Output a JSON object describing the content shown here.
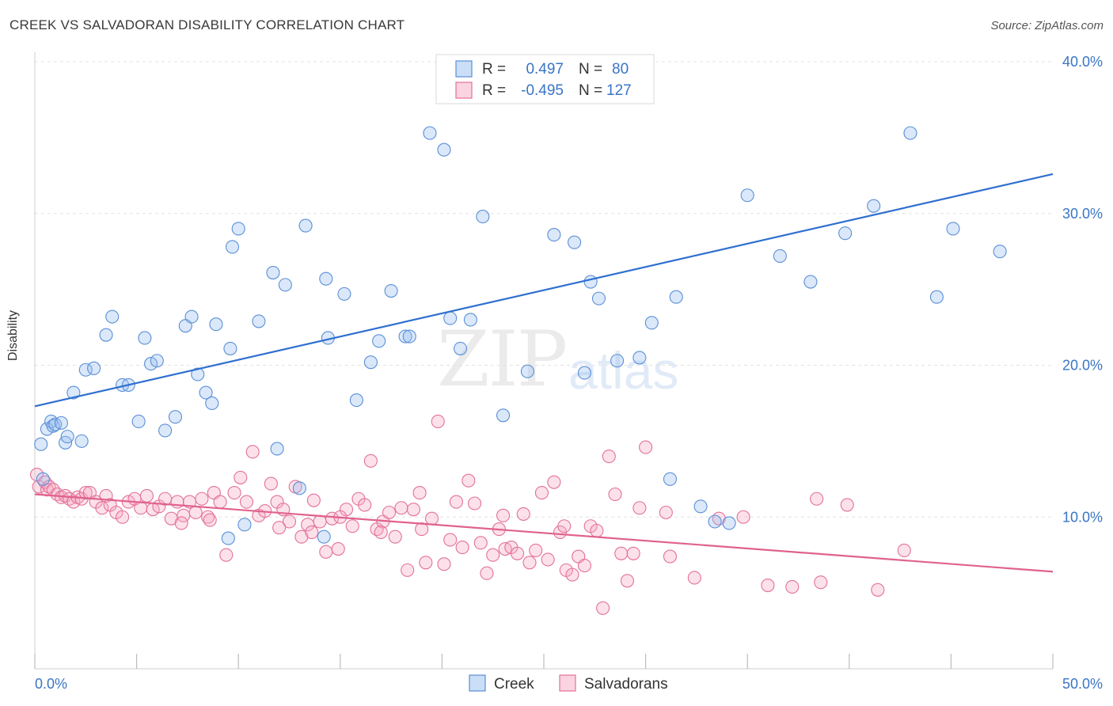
{
  "title": "CREEK VS SALVADORAN DISABILITY CORRELATION CHART",
  "source": "Source: ZipAtlas.com",
  "watermark": {
    "zip": "ZIP",
    "atlas": "atlas"
  },
  "colors": {
    "creek": "#5b8fd6",
    "creek_fill": "rgba(150,190,240,0.35)",
    "salvadoran": "#e2719a",
    "salvadoran_fill": "rgba(245,170,195,0.35)",
    "creek_line": "#2f6fd0",
    "salvadoran_line": "#e0628e",
    "tick": "#3a75c4"
  },
  "legend_top": [
    {
      "r_label": "R =",
      "r_value": "0.497",
      "n_label": "N =",
      "n_value": "80"
    },
    {
      "r_label": "R =",
      "r_value": "-0.495",
      "n_label": "N =",
      "n_value": "127"
    }
  ],
  "chart_data": {
    "type": "scatter",
    "title": "CREEK VS SALVADORAN DISABILITY CORRELATION CHART",
    "xlabel": "",
    "ylabel": "Disability",
    "xlim": [
      0,
      50
    ],
    "ylim": [
      0,
      40
    ],
    "x_tick_labels": [
      "0.0%",
      "50.0%"
    ],
    "y_ticks": [
      10,
      20,
      30,
      40
    ],
    "y_tick_labels": [
      "10.0%",
      "20.0%",
      "30.0%",
      "40.0%"
    ],
    "grid": true,
    "legend_position": "bottom-center",
    "series": [
      {
        "name": "Creek",
        "trend": {
          "x": [
            0,
            50
          ],
          "y": [
            17.3,
            32.6
          ]
        },
        "points": [
          [
            0.4,
            12.5
          ],
          [
            0.3,
            14.8
          ],
          [
            0.6,
            15.8
          ],
          [
            0.8,
            16.3
          ],
          [
            0.9,
            16.0
          ],
          [
            1.0,
            16.1
          ],
          [
            1.3,
            16.2
          ],
          [
            1.5,
            14.9
          ],
          [
            1.6,
            15.3
          ],
          [
            1.9,
            18.2
          ],
          [
            2.3,
            15.0
          ],
          [
            2.5,
            19.7
          ],
          [
            2.9,
            19.8
          ],
          [
            3.8,
            23.2
          ],
          [
            3.5,
            22.0
          ],
          [
            4.3,
            18.7
          ],
          [
            4.6,
            18.7
          ],
          [
            5.1,
            16.3
          ],
          [
            5.4,
            21.8
          ],
          [
            5.7,
            20.1
          ],
          [
            6.0,
            20.3
          ],
          [
            6.4,
            15.7
          ],
          [
            6.9,
            16.6
          ],
          [
            7.4,
            22.6
          ],
          [
            7.7,
            23.2
          ],
          [
            8.0,
            19.4
          ],
          [
            8.4,
            18.2
          ],
          [
            8.7,
            17.5
          ],
          [
            8.9,
            22.7
          ],
          [
            9.6,
            21.1
          ],
          [
            9.7,
            27.8
          ],
          [
            10.0,
            29.0
          ],
          [
            11.0,
            22.9
          ],
          [
            11.7,
            26.1
          ],
          [
            12.3,
            25.3
          ],
          [
            13.3,
            29.2
          ],
          [
            14.3,
            25.7
          ],
          [
            14.4,
            21.8
          ],
          [
            15.2,
            24.7
          ],
          [
            15.8,
            17.7
          ],
          [
            16.5,
            20.2
          ],
          [
            16.9,
            21.6
          ],
          [
            17.5,
            24.9
          ],
          [
            18.2,
            21.9
          ],
          [
            18.4,
            21.9
          ],
          [
            19.4,
            35.3
          ],
          [
            20.1,
            34.2
          ],
          [
            20.4,
            23.1
          ],
          [
            20.9,
            21.1
          ],
          [
            21.4,
            23.0
          ],
          [
            22.0,
            29.8
          ],
          [
            23.0,
            16.7
          ],
          [
            24.2,
            19.6
          ],
          [
            25.5,
            28.6
          ],
          [
            26.5,
            28.1
          ],
          [
            27.0,
            19.5
          ],
          [
            27.3,
            25.5
          ],
          [
            27.7,
            24.4
          ],
          [
            28.6,
            20.3
          ],
          [
            29.7,
            20.5
          ],
          [
            30.3,
            22.8
          ],
          [
            31.2,
            12.5
          ],
          [
            31.5,
            24.5
          ],
          [
            32.7,
            10.7
          ],
          [
            33.4,
            9.7
          ],
          [
            34.1,
            9.6
          ],
          [
            35.0,
            31.2
          ],
          [
            36.6,
            27.2
          ],
          [
            38.1,
            25.5
          ],
          [
            39.8,
            28.7
          ],
          [
            41.2,
            30.5
          ],
          [
            43.0,
            35.3
          ],
          [
            44.3,
            24.5
          ],
          [
            45.1,
            29.0
          ],
          [
            47.4,
            27.5
          ],
          [
            9.5,
            8.6
          ],
          [
            10.3,
            9.5
          ],
          [
            11.9,
            14.5
          ],
          [
            13.0,
            11.9
          ],
          [
            14.2,
            8.7
          ]
        ]
      },
      {
        "name": "Salvadorans",
        "trend": {
          "x": [
            0,
            50
          ],
          "y": [
            11.5,
            6.4
          ]
        },
        "points": [
          [
            0.1,
            12.8
          ],
          [
            0.2,
            12.0
          ],
          [
            0.5,
            12.3
          ],
          [
            0.6,
            11.8
          ],
          [
            0.7,
            12.0
          ],
          [
            0.9,
            11.8
          ],
          [
            1.1,
            11.5
          ],
          [
            1.3,
            11.3
          ],
          [
            1.5,
            11.4
          ],
          [
            1.7,
            11.2
          ],
          [
            1.9,
            11.0
          ],
          [
            2.1,
            11.3
          ],
          [
            2.3,
            11.2
          ],
          [
            2.5,
            11.6
          ],
          [
            2.7,
            11.6
          ],
          [
            3.0,
            11.0
          ],
          [
            3.3,
            10.6
          ],
          [
            3.5,
            11.4
          ],
          [
            3.7,
            10.8
          ],
          [
            4.0,
            10.3
          ],
          [
            4.3,
            10.0
          ],
          [
            4.6,
            11.0
          ],
          [
            4.9,
            11.2
          ],
          [
            5.2,
            10.6
          ],
          [
            5.5,
            11.4
          ],
          [
            5.8,
            10.5
          ],
          [
            6.1,
            10.7
          ],
          [
            6.4,
            11.2
          ],
          [
            6.7,
            9.9
          ],
          [
            7.0,
            11.0
          ],
          [
            7.3,
            10.1
          ],
          [
            7.6,
            11.0
          ],
          [
            7.9,
            10.3
          ],
          [
            8.2,
            11.2
          ],
          [
            8.5,
            10.0
          ],
          [
            8.8,
            11.6
          ],
          [
            9.1,
            11.0
          ],
          [
            9.4,
            7.5
          ],
          [
            9.8,
            11.6
          ],
          [
            10.1,
            12.6
          ],
          [
            10.4,
            11.0
          ],
          [
            10.7,
            14.3
          ],
          [
            11.0,
            10.1
          ],
          [
            11.3,
            10.4
          ],
          [
            11.6,
            12.2
          ],
          [
            11.9,
            11.0
          ],
          [
            12.2,
            10.5
          ],
          [
            12.5,
            9.7
          ],
          [
            12.8,
            12.0
          ],
          [
            13.1,
            8.7
          ],
          [
            13.4,
            9.5
          ],
          [
            13.7,
            11.1
          ],
          [
            14.0,
            9.7
          ],
          [
            14.3,
            7.7
          ],
          [
            14.6,
            9.9
          ],
          [
            14.9,
            7.9
          ],
          [
            15.3,
            10.5
          ],
          [
            15.6,
            9.4
          ],
          [
            15.9,
            11.2
          ],
          [
            16.2,
            10.8
          ],
          [
            16.5,
            13.7
          ],
          [
            16.8,
            9.2
          ],
          [
            17.1,
            9.7
          ],
          [
            17.4,
            10.3
          ],
          [
            17.7,
            8.7
          ],
          [
            18.0,
            10.6
          ],
          [
            18.3,
            6.5
          ],
          [
            18.6,
            10.5
          ],
          [
            18.9,
            11.6
          ],
          [
            19.2,
            7.0
          ],
          [
            19.5,
            9.9
          ],
          [
            19.8,
            16.3
          ],
          [
            20.1,
            6.9
          ],
          [
            20.4,
            8.5
          ],
          [
            20.7,
            11.0
          ],
          [
            21.0,
            8.0
          ],
          [
            21.3,
            12.4
          ],
          [
            21.6,
            10.9
          ],
          [
            21.9,
            8.3
          ],
          [
            22.2,
            6.3
          ],
          [
            22.5,
            7.5
          ],
          [
            22.8,
            9.2
          ],
          [
            23.1,
            7.9
          ],
          [
            23.4,
            8.0
          ],
          [
            23.7,
            7.6
          ],
          [
            24.0,
            10.2
          ],
          [
            24.3,
            7.0
          ],
          [
            24.6,
            7.8
          ],
          [
            24.9,
            11.6
          ],
          [
            25.2,
            7.2
          ],
          [
            25.5,
            12.3
          ],
          [
            25.8,
            9.0
          ],
          [
            26.1,
            6.5
          ],
          [
            26.4,
            6.2
          ],
          [
            26.7,
            7.4
          ],
          [
            27.0,
            6.8
          ],
          [
            27.3,
            9.4
          ],
          [
            27.6,
            9.1
          ],
          [
            27.9,
            4.0
          ],
          [
            28.2,
            14.0
          ],
          [
            28.5,
            11.5
          ],
          [
            28.8,
            7.6
          ],
          [
            29.1,
            5.8
          ],
          [
            29.4,
            7.6
          ],
          [
            29.7,
            10.6
          ],
          [
            30.0,
            14.6
          ],
          [
            31.2,
            7.4
          ],
          [
            32.4,
            6.0
          ],
          [
            33.6,
            9.9
          ],
          [
            34.8,
            10.0
          ],
          [
            36.0,
            5.5
          ],
          [
            37.2,
            5.4
          ],
          [
            38.4,
            11.2
          ],
          [
            38.6,
            5.7
          ],
          [
            39.9,
            10.8
          ],
          [
            41.4,
            5.2
          ],
          [
            42.7,
            7.8
          ],
          [
            7.2,
            9.6
          ],
          [
            8.6,
            9.8
          ],
          [
            12.0,
            9.3
          ],
          [
            15.0,
            10.0
          ],
          [
            17.0,
            9.0
          ],
          [
            19.0,
            9.2
          ],
          [
            23.0,
            10.1
          ],
          [
            26.0,
            9.4
          ],
          [
            31.0,
            10.3
          ],
          [
            13.6,
            9.0
          ]
        ]
      }
    ]
  }
}
